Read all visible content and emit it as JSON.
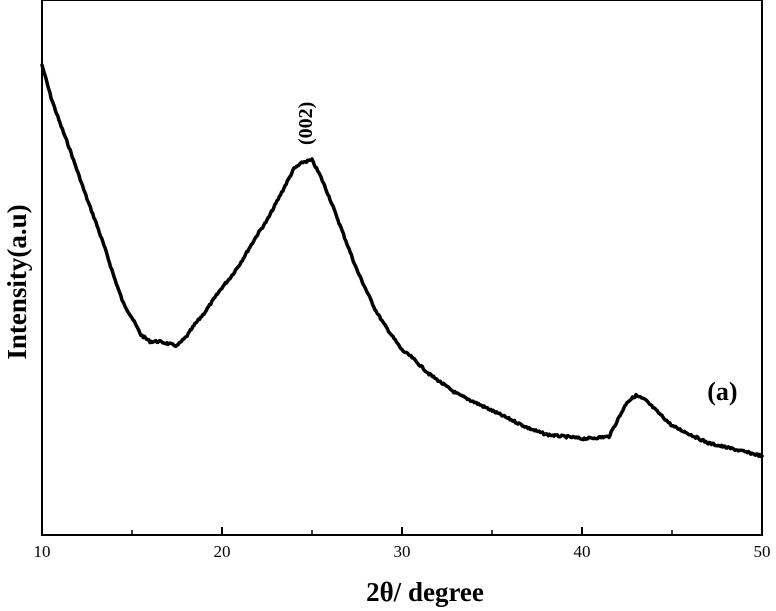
{
  "chart_data": {
    "type": "line",
    "title": "",
    "xlabel": "2θ/ degree",
    "ylabel": "Intensity(a.u)",
    "xlim": [
      10,
      50
    ],
    "ylim": [
      0,
      100
    ],
    "x_ticks": [
      10,
      20,
      30,
      40,
      50
    ],
    "x_tick_labels": [
      "10",
      "20",
      "30",
      "40",
      "50"
    ],
    "y_tick_labels": [],
    "grid": false,
    "legend": "none",
    "line_color": "#000000",
    "annotations": [
      {
        "text": "(002)",
        "x": 24.6,
        "y": 86.5,
        "rotation": -90
      },
      {
        "text": "(a)",
        "x": 47.8,
        "y": 24.5
      }
    ],
    "series": [
      {
        "x": [
          10.0,
          10.5,
          11.0,
          11.5,
          12.0,
          12.5,
          13.0,
          13.5,
          14.0,
          14.5,
          15.0,
          15.5,
          16.0,
          16.5,
          17.0,
          17.5,
          18.0,
          18.5,
          19.0,
          19.5,
          20.0,
          20.5,
          21.0,
          21.5,
          22.0,
          22.5,
          23.0,
          23.5,
          24.0,
          24.5,
          25.0,
          25.5,
          26.0,
          26.5,
          27.0,
          27.5,
          28.0,
          28.5,
          29.0,
          29.5,
          30.0,
          30.5,
          31.0,
          31.5,
          32.0,
          32.5,
          33.0,
          33.5,
          34.0,
          34.5,
          35.0,
          35.5,
          36.0,
          36.5,
          37.0,
          37.5,
          38.0,
          38.5,
          39.0,
          39.5,
          40.0,
          40.5,
          41.0,
          41.5,
          42.0,
          42.5,
          43.0,
          43.5,
          44.0,
          44.5,
          45.0,
          45.5,
          46.0,
          46.5,
          47.0,
          47.5,
          48.0,
          48.5,
          49.0,
          49.5,
          50.0
        ],
        "y": [
          100.0,
          92.5,
          86.5,
          81.0,
          75.0,
          69.0,
          63.5,
          57.5,
          51.0,
          45.0,
          41.5,
          37.5,
          36.0,
          36.0,
          35.5,
          35.0,
          37.0,
          40.0,
          42.5,
          45.5,
          48.5,
          51.0,
          54.0,
          57.5,
          61.0,
          64.0,
          68.0,
          72.0,
          76.0,
          77.5,
          78.0,
          74.0,
          69.0,
          63.5,
          58.0,
          52.5,
          48.0,
          43.5,
          40.0,
          37.0,
          34.0,
          32.5,
          30.5,
          28.5,
          27.0,
          25.5,
          24.0,
          23.0,
          22.0,
          21.0,
          20.0,
          19.0,
          18.0,
          17.0,
          16.0,
          15.2,
          14.5,
          14.2,
          14.0,
          13.8,
          13.5,
          13.6,
          13.8,
          14.0,
          18.0,
          22.0,
          23.5,
          22.5,
          20.5,
          18.5,
          16.5,
          15.5,
          14.5,
          13.5,
          12.5,
          12.0,
          11.5,
          11.0,
          10.5,
          10.0,
          9.5
        ]
      }
    ]
  }
}
